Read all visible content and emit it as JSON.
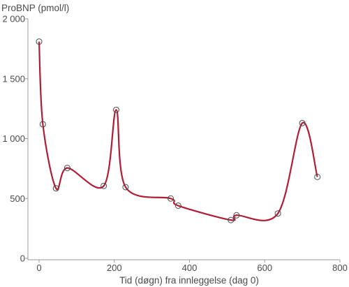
{
  "chart_data": {
    "type": "line",
    "title": "",
    "ylabel": "ProBNP (pmol/l)",
    "xlabel": "Tid (døgn) fra innleggelse (dag 0)",
    "xlim": [
      -20,
      800
    ],
    "ylim": [
      0,
      2000
    ],
    "x_ticks": [
      0,
      200,
      400,
      600,
      800
    ],
    "x_tick_labels": [
      "0",
      "200",
      "400",
      "600",
      "800"
    ],
    "y_ticks": [
      0,
      500,
      1000,
      1500,
      2000
    ],
    "y_tick_labels": [
      "0",
      "500",
      "1 000",
      "1 500",
      "2 000"
    ],
    "grid": false,
    "legend": "none",
    "line_color": "#b01e35",
    "marker_color": "#4a4a4a",
    "series": [
      {
        "x": [
          0,
          10,
          45,
          75,
          172,
          205,
          230,
          350,
          370,
          510,
          525,
          635,
          700,
          740
        ],
        "values": [
          1810,
          1120,
          585,
          755,
          605,
          1240,
          595,
          500,
          440,
          320,
          360,
          375,
          1130,
          680
        ]
      }
    ]
  }
}
